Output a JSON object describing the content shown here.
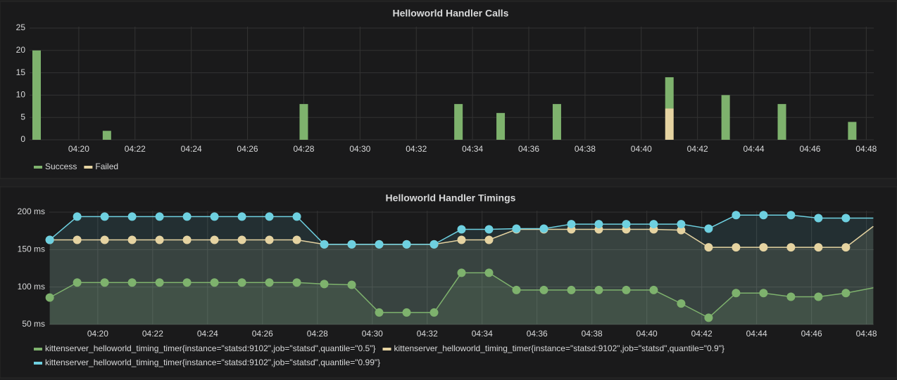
{
  "chart_data": [
    {
      "type": "bar",
      "stacked": true,
      "title": "Helloworld Handler Calls",
      "x": [
        "04:18:30",
        "04:21:00",
        "04:28:00",
        "04:33:30",
        "04:35:00",
        "04:37:00",
        "04:41:00",
        "04:43:00",
        "04:45:00",
        "04:47:30"
      ],
      "series": [
        {
          "name": "Success",
          "color": "#7eb26d",
          "values": [
            20,
            2,
            8,
            8,
            6,
            8,
            7,
            10,
            8,
            4
          ]
        },
        {
          "name": "Failed",
          "color": "#e5d3a1",
          "values": [
            0,
            0,
            0,
            0,
            0,
            0,
            7,
            0,
            0,
            0
          ]
        }
      ],
      "xlim": [
        "04:18:15",
        "04:48:16"
      ],
      "xticks": [
        "04:20",
        "04:22",
        "04:24",
        "04:26",
        "04:28",
        "04:30",
        "04:32",
        "04:34",
        "04:36",
        "04:38",
        "04:40",
        "04:42",
        "04:44",
        "04:46",
        "04:48"
      ],
      "ylim": [
        0,
        25
      ],
      "yticks": [
        0,
        5,
        10,
        15,
        20,
        25
      ],
      "grid": true,
      "legend": "bottom-left"
    },
    {
      "type": "line",
      "title": "Helloworld Handler Timings",
      "x": [
        "04:18:15",
        "04:19:15",
        "04:20:15",
        "04:21:15",
        "04:22:15",
        "04:23:15",
        "04:24:15",
        "04:25:15",
        "04:26:15",
        "04:27:15",
        "04:28:15",
        "04:29:15",
        "04:30:15",
        "04:31:15",
        "04:32:15",
        "04:33:15",
        "04:34:15",
        "04:35:15",
        "04:36:15",
        "04:37:15",
        "04:38:15",
        "04:39:15",
        "04:40:15",
        "04:41:15",
        "04:42:15",
        "04:43:15",
        "04:44:15",
        "04:45:15",
        "04:46:15",
        "04:47:15",
        "04:48:15"
      ],
      "series": [
        {
          "name": "kittenserver_helloworld_timing_timer{instance=\"statsd:9102\",job=\"statsd\",quantile=\"0.5\"}",
          "color": "#7eb26d",
          "values": [
            86,
            106,
            106,
            106,
            106,
            106,
            106,
            106,
            106,
            106,
            104,
            103,
            66,
            66,
            66,
            119,
            119,
            96,
            96,
            96,
            96,
            96,
            96,
            78,
            59,
            92,
            92,
            87,
            87,
            92,
            99
          ]
        },
        {
          "name": "kittenserver_helloworld_timing_timer{instance=\"statsd:9102\",job=\"statsd\",quantile=\"0.9\"}",
          "color": "#e5d3a1",
          "values": [
            163,
            163,
            163,
            163,
            163,
            163,
            163,
            163,
            163,
            163,
            157,
            157,
            157,
            157,
            157,
            163,
            163,
            177,
            177,
            177,
            177,
            177,
            177,
            176,
            153,
            153,
            153,
            153,
            153,
            153,
            181
          ]
        },
        {
          "name": "kittenserver_helloworld_timing_timer{instance=\"statsd:9102\",job=\"statsd\",quantile=\"0.99\"}",
          "color": "#6ed0e0",
          "values": [
            163,
            194,
            194,
            194,
            194,
            194,
            194,
            194,
            194,
            194,
            157,
            157,
            157,
            157,
            157,
            177,
            177,
            178,
            178,
            184,
            184,
            184,
            184,
            184,
            178,
            196,
            196,
            196,
            192,
            192,
            192
          ]
        }
      ],
      "xlim": [
        "04:18:14",
        "04:48:16"
      ],
      "xticks": [
        "04:20",
        "04:22",
        "04:24",
        "04:26",
        "04:28",
        "04:30",
        "04:32",
        "04:34",
        "04:36",
        "04:38",
        "04:40",
        "04:42",
        "04:44",
        "04:46",
        "04:48"
      ],
      "ylim": [
        50,
        200
      ],
      "yticks": [
        {
          "value": 50,
          "label": "50 ms"
        },
        {
          "value": 100,
          "label": "100 ms"
        },
        {
          "value": 150,
          "label": "150 ms"
        },
        {
          "value": 200,
          "label": "200 ms"
        }
      ],
      "grid": true,
      "fill": true,
      "points": true,
      "legend": "bottom-left"
    }
  ]
}
